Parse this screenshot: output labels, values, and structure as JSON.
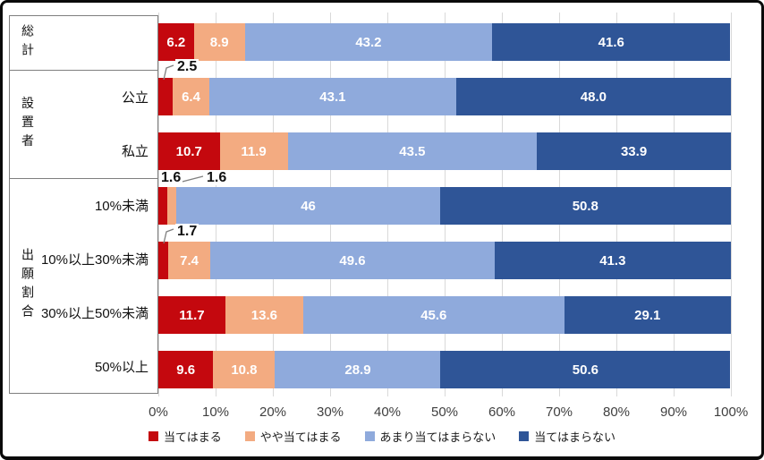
{
  "frame": {
    "background": "#FFFFFF",
    "border_color": "#0A0A0A"
  },
  "colors": {
    "grid": "#D9D9D9",
    "panel_border": "#7F7F7F",
    "axis_text": "#3F3F3F",
    "bar_label_text": "#FFFFFF",
    "callout_text": "#111111",
    "leader_line": "#7F7F7F",
    "series": [
      "#C4080E",
      "#F3AB81",
      "#8FAADC",
      "#2F5597"
    ]
  },
  "chart_data": {
    "type": "bar",
    "stacked": true,
    "orientation": "horizontal",
    "title": "",
    "categories": [
      "総計",
      "公立",
      "私立",
      "10%未満",
      "10%以上30%未満",
      "30%以上50%未満",
      "50%以上"
    ],
    "category_groups": [
      {
        "label": "総計",
        "span": [
          0,
          0
        ]
      },
      {
        "label": "設置者",
        "span": [
          1,
          2
        ]
      },
      {
        "label": "出願割合",
        "span": [
          3,
          6
        ]
      }
    ],
    "series": [
      {
        "name": "当てはまる",
        "color": "#C4080E",
        "values": [
          6.2,
          2.5,
          10.7,
          1.6,
          1.7,
          11.7,
          9.6
        ]
      },
      {
        "name": "やや当てはまる",
        "color": "#F3AB81",
        "values": [
          8.9,
          6.4,
          11.9,
          1.6,
          7.4,
          13.6,
          10.8
        ]
      },
      {
        "name": "あまり当てはまらない",
        "color": "#8FAADC",
        "values": [
          43.2,
          43.1,
          43.5,
          46,
          49.6,
          45.6,
          28.9
        ]
      },
      {
        "name": "当てはまらない",
        "color": "#2F5597",
        "values": [
          41.6,
          48.0,
          33.9,
          50.8,
          41.3,
          29.1,
          50.6
        ]
      }
    ],
    "value_labels": [
      [
        "6.2",
        "8.9",
        "43.2",
        "41.6"
      ],
      [
        "2.5",
        "6.4",
        "43.1",
        "48.0"
      ],
      [
        "10.7",
        "11.9",
        "43.5",
        "33.9"
      ],
      [
        "1.6",
        "1.6",
        "46",
        "50.8"
      ],
      [
        "1.7",
        "7.4",
        "49.6",
        "41.3"
      ],
      [
        "11.7",
        "13.6",
        "45.6",
        "29.1"
      ],
      [
        "9.6",
        "10.8",
        "28.9",
        "50.6"
      ]
    ],
    "xlim": [
      0,
      100
    ],
    "x_ticks": [
      "0%",
      "10%",
      "20%",
      "30%",
      "40%",
      "50%",
      "60%",
      "70%",
      "80%",
      "90%",
      "100%"
    ],
    "legend": [
      "当てはまる",
      "やや当てはまる",
      "あまり当てはまらない",
      "当てはまらない"
    ],
    "legend_position": "bottom",
    "grid": true
  }
}
